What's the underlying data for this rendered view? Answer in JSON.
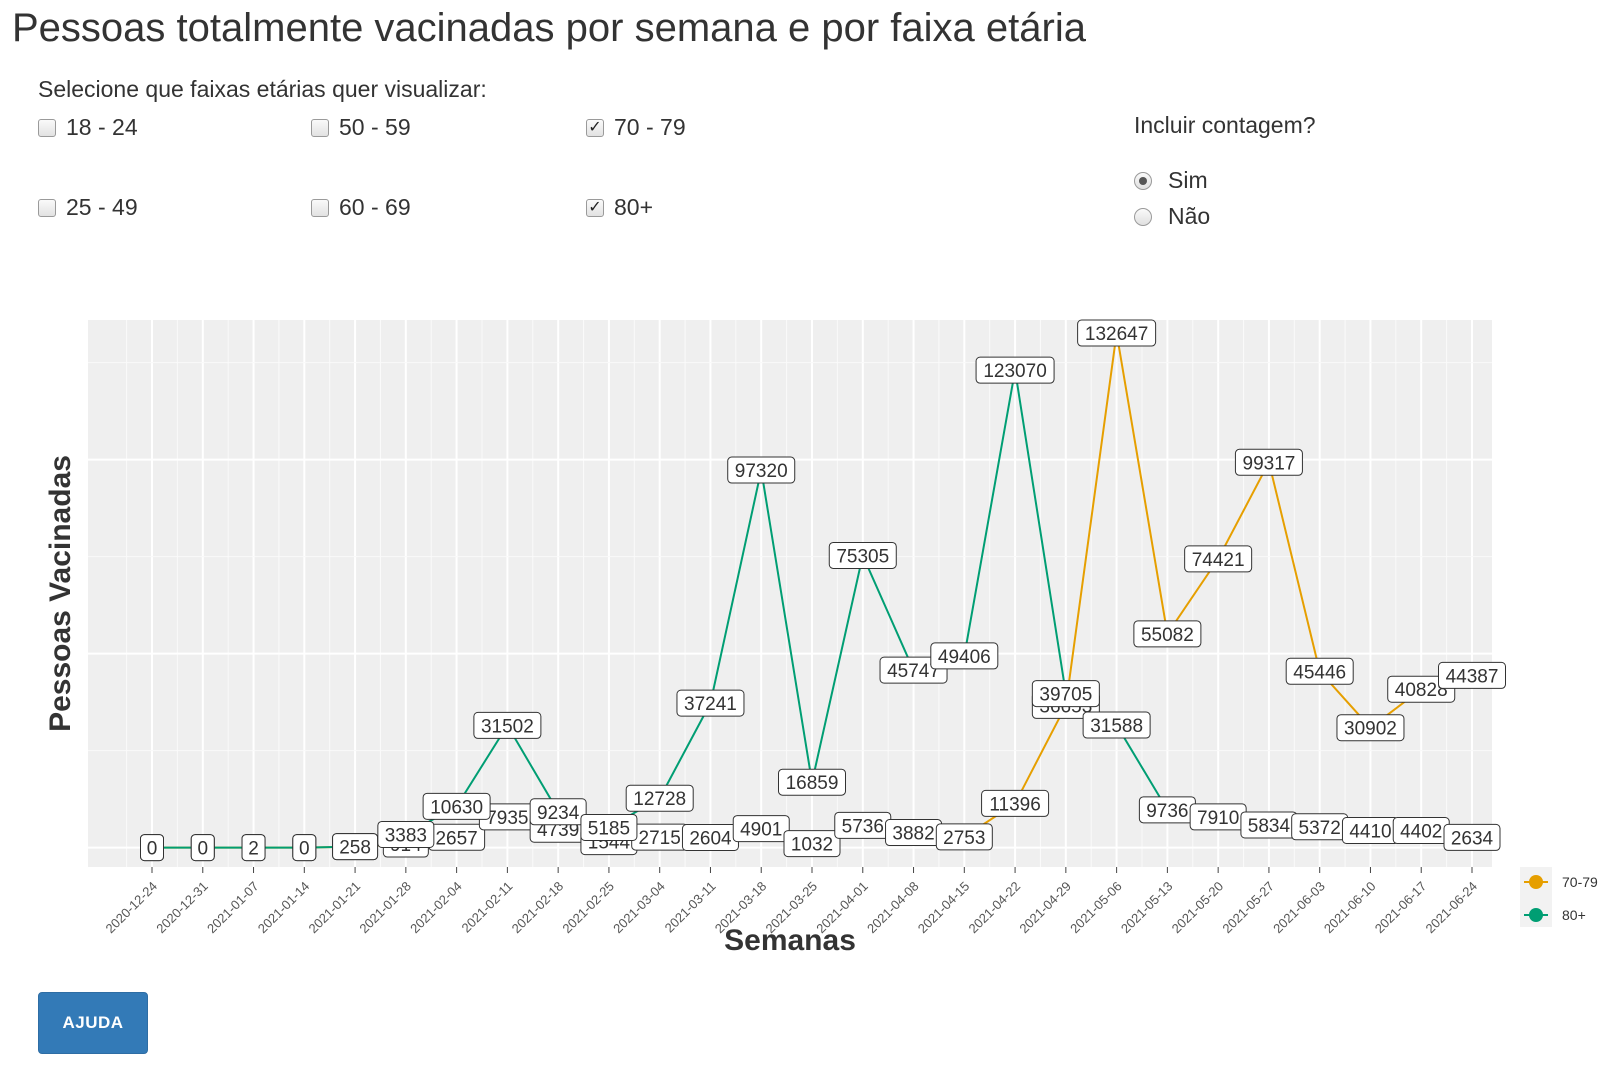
{
  "title": "Pessoas totalmente vacinadas por semana e por faixa etária",
  "age_filter": {
    "prompt": "Selecione que faixas etárias quer visualizar:",
    "options": [
      {
        "label": "18 - 24",
        "checked": false
      },
      {
        "label": "50 - 59",
        "checked": false
      },
      {
        "label": "70 - 79",
        "checked": true
      },
      {
        "label": "25 - 49",
        "checked": false
      },
      {
        "label": "60 - 69",
        "checked": false
      },
      {
        "label": "80+",
        "checked": true
      }
    ]
  },
  "count_toggle": {
    "prompt": "Incluir contagem?",
    "options": [
      {
        "label": "Sim",
        "selected": true
      },
      {
        "label": "Não",
        "selected": false
      }
    ]
  },
  "help_button": {
    "label": "AJUDA"
  },
  "chart_data": {
    "type": "line",
    "title": "",
    "xlabel": "Semanas",
    "ylabel": "Pessoas Vacinadas",
    "ylim": [
      -5000,
      136000
    ],
    "grid": true,
    "legend_position": "right",
    "x": [
      "2020-12-24",
      "2020-12-31",
      "2021-01-07",
      "2021-01-14",
      "2021-01-21",
      "2021-01-28",
      "2021-02-04",
      "2021-02-11",
      "2021-02-18",
      "2021-02-25",
      "2021-03-04",
      "2021-03-11",
      "2021-03-18",
      "2021-03-25",
      "2021-04-01",
      "2021-04-08",
      "2021-04-15",
      "2021-04-22",
      "2021-04-29",
      "2021-05-06",
      "2021-05-13",
      "2021-05-20",
      "2021-05-27",
      "2021-06-03",
      "2021-06-10",
      "2021-06-17",
      "2021-06-24"
    ],
    "series": [
      {
        "name": "70-79",
        "color": "#E69F00",
        "values": [
          0,
          0,
          0,
          0,
          248,
          914,
          2657,
          7935,
          4739,
          1544,
          2715,
          2604,
          4901,
          1032,
          5736,
          3882,
          2753,
          11396,
          36653,
          132647,
          55082,
          74421,
          99317,
          45446,
          30902,
          40828,
          44387
        ]
      },
      {
        "name": "80+",
        "color": "#009E73",
        "values": [
          0,
          0,
          2,
          0,
          258,
          3383,
          10630,
          31502,
          9234,
          5185,
          12728,
          37241,
          97320,
          16859,
          75305,
          45747,
          49406,
          123070,
          39705,
          31588,
          9736,
          7910,
          5834,
          5372,
          4410,
          4402,
          2634
        ]
      }
    ]
  }
}
